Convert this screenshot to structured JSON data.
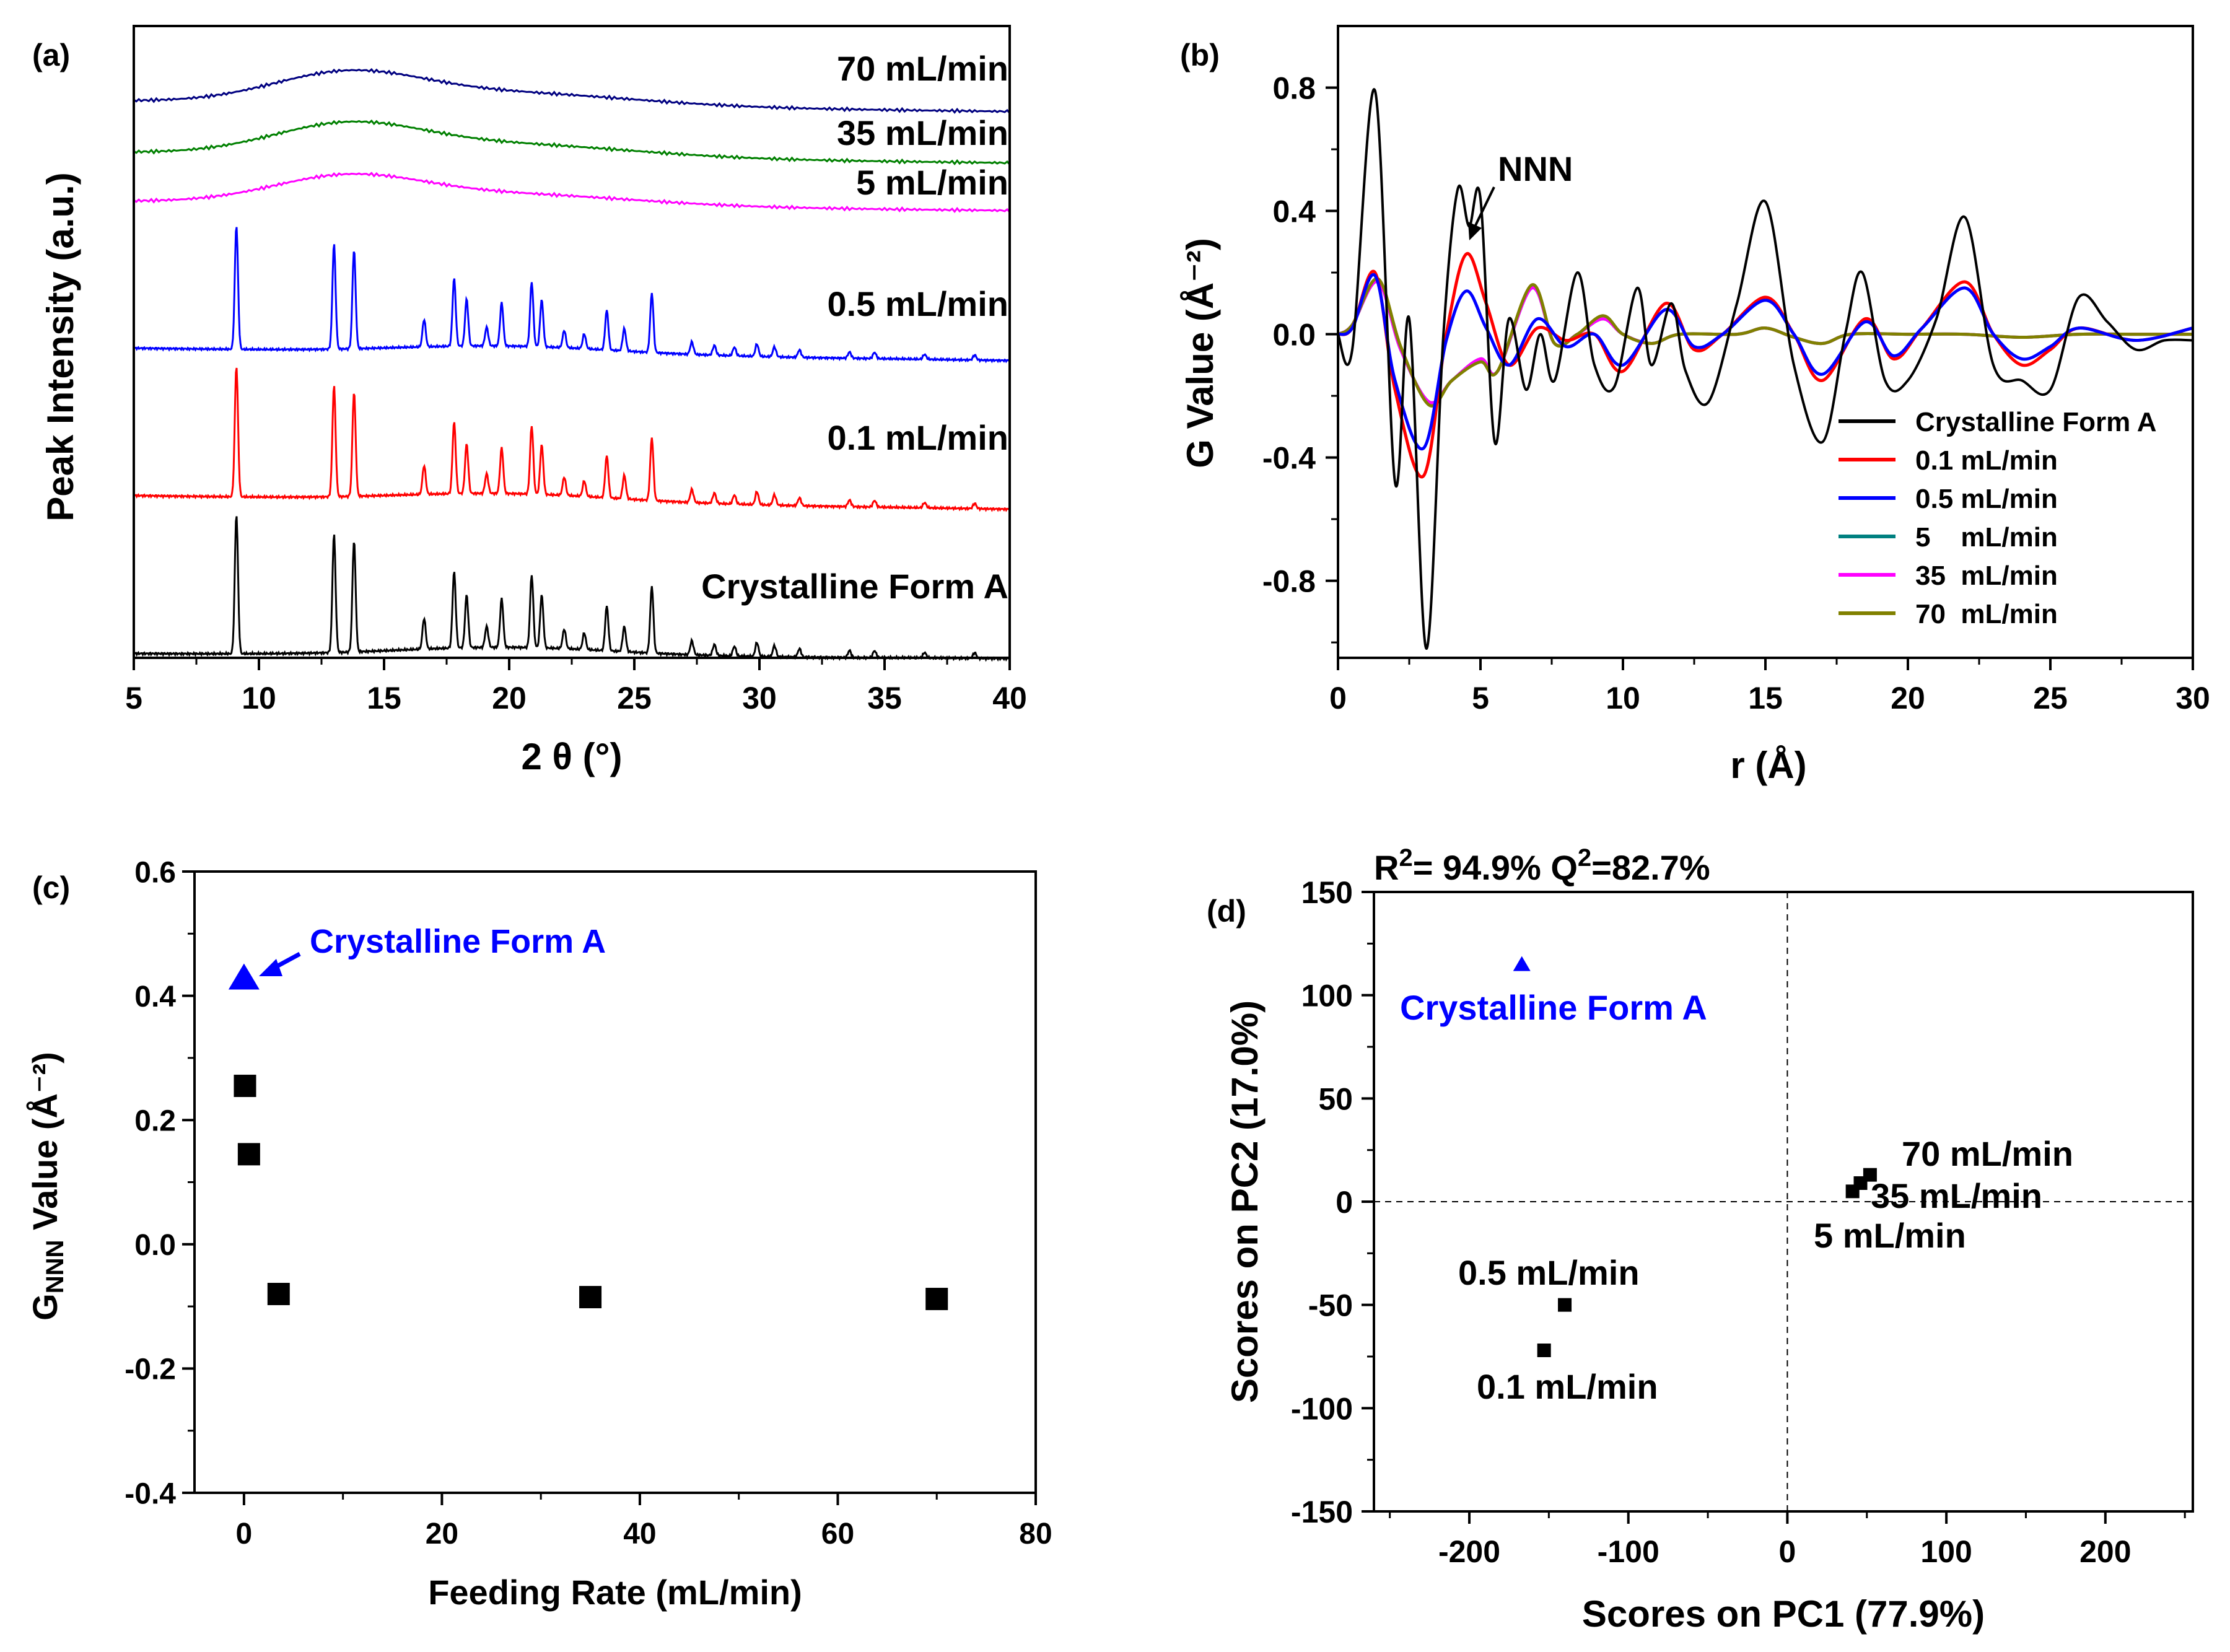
{
  "colors": {
    "black": "#000000",
    "red": "#ff0000",
    "blue": "#0000ff",
    "navy": "#000080",
    "green": "#008000",
    "magenta": "#ff00ff",
    "teal": "#008080",
    "olive": "#808000"
  },
  "chart_data": [
    {
      "panel": "(a)",
      "type": "line",
      "xlabel": "2 θ (°)",
      "ylabel": "Peak Intensity (a.u.)",
      "xlim": [
        5,
        40
      ],
      "xticks": [
        5,
        10,
        15,
        20,
        25,
        30,
        35,
        40
      ],
      "peaks_2theta": [
        9.1,
        13.0,
        13.8,
        16.6,
        17.8,
        18.3,
        19.1,
        19.7,
        20.9,
        21.3,
        22.2,
        23.0,
        23.9,
        24.6,
        25.7,
        27.3,
        28.2,
        29.0,
        29.9,
        30.6,
        31.6,
        33.6,
        34.6,
        36.6,
        38.6
      ],
      "series": [
        {
          "name": "70 mL/min",
          "color": "navy",
          "pattern": "amorphous halo, max near 13.5°"
        },
        {
          "name": "35 mL/min",
          "color": "green",
          "pattern": "amorphous halo, max near 13.5°"
        },
        {
          "name": "5 mL/min",
          "color": "magenta",
          "pattern": "amorphous halo, max near 13.5°"
        },
        {
          "name": "0.5 mL/min",
          "color": "blue",
          "pattern": "crystalline"
        },
        {
          "name": "0.1 mL/min",
          "color": "red",
          "pattern": "crystalline"
        },
        {
          "name": "Crystalline Form A",
          "color": "black",
          "pattern": "crystalline"
        }
      ]
    },
    {
      "panel": "(b)",
      "type": "line",
      "xlabel": "r (Å)",
      "ylabel": "G Value (Å⁻²)",
      "xlim": [
        0,
        30
      ],
      "ylim": [
        -1.05,
        1.0
      ],
      "xticks": [
        0,
        5,
        10,
        15,
        20,
        25,
        30
      ],
      "yticks": [
        -0.8,
        -0.4,
        0.0,
        0.4,
        0.8
      ],
      "annotation": "NNN",
      "series": [
        {
          "name": "Crystalline Form A",
          "color": "black",
          "points": [
            [
              0,
              0
            ],
            [
              0.5,
              -0.05
            ],
            [
              1.3,
              0.79
            ],
            [
              2.0,
              -0.48
            ],
            [
              2.5,
              0.05
            ],
            [
              3.1,
              -1.02
            ],
            [
              3.7,
              0.0
            ],
            [
              4.2,
              0.47
            ],
            [
              4.6,
              0.35
            ],
            [
              5.0,
              0.44
            ],
            [
              5.5,
              -0.35
            ],
            [
              6.0,
              0.05
            ],
            [
              6.6,
              -0.18
            ],
            [
              7.1,
              0.0
            ],
            [
              7.6,
              -0.15
            ],
            [
              8.4,
              0.2
            ],
            [
              9.0,
              -0.1
            ],
            [
              9.7,
              -0.17
            ],
            [
              10.5,
              0.15
            ],
            [
              11.0,
              -0.1
            ],
            [
              11.7,
              0.1
            ],
            [
              12.2,
              -0.12
            ],
            [
              13.0,
              -0.22
            ],
            [
              14.0,
              0.1
            ],
            [
              15.0,
              0.43
            ],
            [
              16.0,
              -0.1
            ],
            [
              17.0,
              -0.35
            ],
            [
              17.8,
              0.0
            ],
            [
              18.4,
              0.2
            ],
            [
              19.2,
              -0.15
            ],
            [
              20.0,
              -0.15
            ],
            [
              21.0,
              0.05
            ],
            [
              22.0,
              0.38
            ],
            [
              23.0,
              -0.1
            ],
            [
              24.0,
              -0.15
            ],
            [
              25.0,
              -0.18
            ],
            [
              26.0,
              0.12
            ],
            [
              27.0,
              0.04
            ],
            [
              28.0,
              -0.05
            ],
            [
              29.0,
              -0.02
            ],
            [
              30.0,
              -0.02
            ]
          ]
        },
        {
          "name": "0.1 mL/min",
          "color": "red",
          "points": [
            [
              0,
              0
            ],
            [
              0.5,
              0.02
            ],
            [
              1.3,
              0.2
            ],
            [
              2.0,
              -0.18
            ],
            [
              3.0,
              -0.46
            ],
            [
              3.8,
              0.0
            ],
            [
              4.5,
              0.26
            ],
            [
              5.2,
              0.1
            ],
            [
              6.0,
              -0.1
            ],
            [
              7.0,
              0.02
            ],
            [
              8.0,
              -0.02
            ],
            [
              9.0,
              0.0
            ],
            [
              10.0,
              -0.12
            ],
            [
              11.5,
              0.1
            ],
            [
              12.5,
              -0.05
            ],
            [
              13.5,
              0.0
            ],
            [
              15.0,
              0.12
            ],
            [
              16.0,
              0.0
            ],
            [
              17.0,
              -0.15
            ],
            [
              18.5,
              0.05
            ],
            [
              19.5,
              -0.08
            ],
            [
              20.5,
              0.02
            ],
            [
              22.0,
              0.17
            ],
            [
              23.0,
              0.0
            ],
            [
              24.0,
              -0.1
            ],
            [
              25.0,
              -0.05
            ],
            [
              26.0,
              0.02
            ],
            [
              28.0,
              -0.02
            ],
            [
              30.0,
              0.02
            ]
          ]
        },
        {
          "name": "0.5 mL/min",
          "color": "blue",
          "points": [
            [
              0,
              0
            ],
            [
              0.5,
              0.02
            ],
            [
              1.3,
              0.19
            ],
            [
              2.0,
              -0.15
            ],
            [
              3.0,
              -0.37
            ],
            [
              3.8,
              -0.02
            ],
            [
              4.5,
              0.14
            ],
            [
              5.2,
              0.02
            ],
            [
              6.0,
              -0.1
            ],
            [
              7.0,
              0.05
            ],
            [
              8.0,
              -0.04
            ],
            [
              9.0,
              0.0
            ],
            [
              10.0,
              -0.1
            ],
            [
              11.5,
              0.08
            ],
            [
              12.5,
              -0.04
            ],
            [
              13.5,
              0.0
            ],
            [
              15.0,
              0.11
            ],
            [
              16.0,
              0.0
            ],
            [
              17.0,
              -0.13
            ],
            [
              18.5,
              0.04
            ],
            [
              19.5,
              -0.07
            ],
            [
              20.5,
              0.02
            ],
            [
              22.0,
              0.15
            ],
            [
              23.0,
              0.0
            ],
            [
              24.0,
              -0.08
            ],
            [
              25.0,
              -0.04
            ],
            [
              26.0,
              0.02
            ],
            [
              28.0,
              -0.02
            ],
            [
              30.0,
              0.02
            ]
          ]
        },
        {
          "name": "5    mL/min",
          "color": "teal",
          "points": [
            [
              0,
              0
            ],
            [
              0.5,
              0.03
            ],
            [
              1.4,
              0.17
            ],
            [
              2.2,
              -0.05
            ],
            [
              3.2,
              -0.22
            ],
            [
              4.0,
              -0.15
            ],
            [
              5.0,
              -0.08
            ],
            [
              5.6,
              -0.12
            ],
            [
              6.8,
              0.15
            ],
            [
              7.6,
              -0.03
            ],
            [
              8.4,
              0.0
            ],
            [
              9.3,
              0.05
            ],
            [
              10.0,
              0.0
            ],
            [
              11.0,
              -0.03
            ],
            [
              12.0,
              0.0
            ],
            [
              14.0,
              0.0
            ],
            [
              15.0,
              0.02
            ],
            [
              16.0,
              -0.01
            ],
            [
              17.0,
              -0.03
            ],
            [
              18.0,
              0.0
            ],
            [
              20.0,
              0.0
            ],
            [
              22.0,
              0.0
            ],
            [
              24.0,
              -0.01
            ],
            [
              26.0,
              0.0
            ],
            [
              28.0,
              0.0
            ],
            [
              30.0,
              0.0
            ]
          ]
        },
        {
          "name": "35  mL/min",
          "color": "magenta",
          "points": [
            [
              0,
              0
            ],
            [
              0.5,
              0.03
            ],
            [
              1.4,
              0.17
            ],
            [
              2.2,
              -0.05
            ],
            [
              3.2,
              -0.22
            ],
            [
              4.0,
              -0.15
            ],
            [
              5.0,
              -0.08
            ],
            [
              5.6,
              -0.12
            ],
            [
              6.8,
              0.15
            ],
            [
              7.6,
              -0.03
            ],
            [
              8.4,
              0.0
            ],
            [
              9.3,
              0.05
            ],
            [
              10.0,
              0.0
            ],
            [
              11.0,
              -0.03
            ],
            [
              12.0,
              0.0
            ],
            [
              14.0,
              0.0
            ],
            [
              15.0,
              0.02
            ],
            [
              16.0,
              -0.01
            ],
            [
              17.0,
              -0.03
            ],
            [
              18.0,
              0.0
            ],
            [
              20.0,
              0.0
            ],
            [
              22.0,
              0.0
            ],
            [
              24.0,
              -0.01
            ],
            [
              26.0,
              0.0
            ],
            [
              28.0,
              0.0
            ],
            [
              30.0,
              0.0
            ]
          ]
        },
        {
          "name": "70  mL/min",
          "color": "olive",
          "points": [
            [
              0,
              0
            ],
            [
              0.5,
              0.03
            ],
            [
              1.4,
              0.18
            ],
            [
              2.2,
              -0.04
            ],
            [
              3.2,
              -0.23
            ],
            [
              4.0,
              -0.15
            ],
            [
              5.0,
              -0.09
            ],
            [
              5.6,
              -0.12
            ],
            [
              6.8,
              0.16
            ],
            [
              7.6,
              -0.03
            ],
            [
              8.4,
              0.0
            ],
            [
              9.3,
              0.06
            ],
            [
              10.0,
              0.0
            ],
            [
              11.0,
              -0.03
            ],
            [
              12.0,
              0.0
            ],
            [
              14.0,
              0.0
            ],
            [
              15.0,
              0.02
            ],
            [
              16.0,
              -0.01
            ],
            [
              17.0,
              -0.03
            ],
            [
              18.0,
              0.0
            ],
            [
              20.0,
              0.0
            ],
            [
              22.0,
              0.0
            ],
            [
              24.0,
              -0.01
            ],
            [
              26.0,
              0.0
            ],
            [
              28.0,
              0.0
            ],
            [
              30.0,
              0.0
            ]
          ]
        }
      ]
    },
    {
      "panel": "(c)",
      "type": "scatter",
      "xlabel": "Feeding Rate (mL/min)",
      "ylabel_main": "G",
      "ylabel_sub": "NNN",
      "ylabel_rest": " Value  (Å⁻²)",
      "xlim": [
        -5,
        80
      ],
      "ylim": [
        -0.4,
        0.6
      ],
      "xticks": [
        0,
        20,
        40,
        60,
        80
      ],
      "yticks": [
        -0.4,
        -0.2,
        0.0,
        0.2,
        0.4,
        0.6
      ],
      "highlight": {
        "label": "Crystalline Form A",
        "x": 0,
        "y": 0.43,
        "marker": "triangle",
        "color": "blue"
      },
      "points": [
        {
          "x": 0.1,
          "y": 0.255
        },
        {
          "x": 0.5,
          "y": 0.145
        },
        {
          "x": 3.5,
          "y": -0.08
        },
        {
          "x": 35,
          "y": -0.085
        },
        {
          "x": 70,
          "y": -0.088
        }
      ]
    },
    {
      "panel": "(d)",
      "type": "scatter",
      "xlabel": "Scores on PC1 (77.9%)",
      "ylabel": "Scores on PC2 (17.0%)",
      "stats": {
        "r2_label": "R",
        "r2_sup": "2",
        "r2_value": "= 94.9%",
        "q2_label": "Q",
        "q2_sup": "2",
        "q2_value": "=82.7%"
      },
      "xlim": [
        -260,
        255
      ],
      "ylim": [
        -150,
        150
      ],
      "xticks": [
        -200,
        -100,
        0,
        100,
        200
      ],
      "yticks": [
        -150,
        -100,
        -50,
        0,
        50,
        100,
        150
      ],
      "highlight": {
        "label": "Crystalline Form A",
        "x": -167,
        "y": 115,
        "marker": "triangle",
        "color": "blue"
      },
      "points": [
        {
          "label": "70 mL/min",
          "x": 52,
          "y": 13
        },
        {
          "label": "35 mL/min",
          "x": 46,
          "y": 9
        },
        {
          "label": "5 mL/min",
          "x": 41,
          "y": 5
        },
        {
          "label": "0.5 mL/min",
          "x": -140,
          "y": -50
        },
        {
          "label": "0.1 mL/min",
          "x": -153,
          "y": -72
        }
      ]
    }
  ]
}
